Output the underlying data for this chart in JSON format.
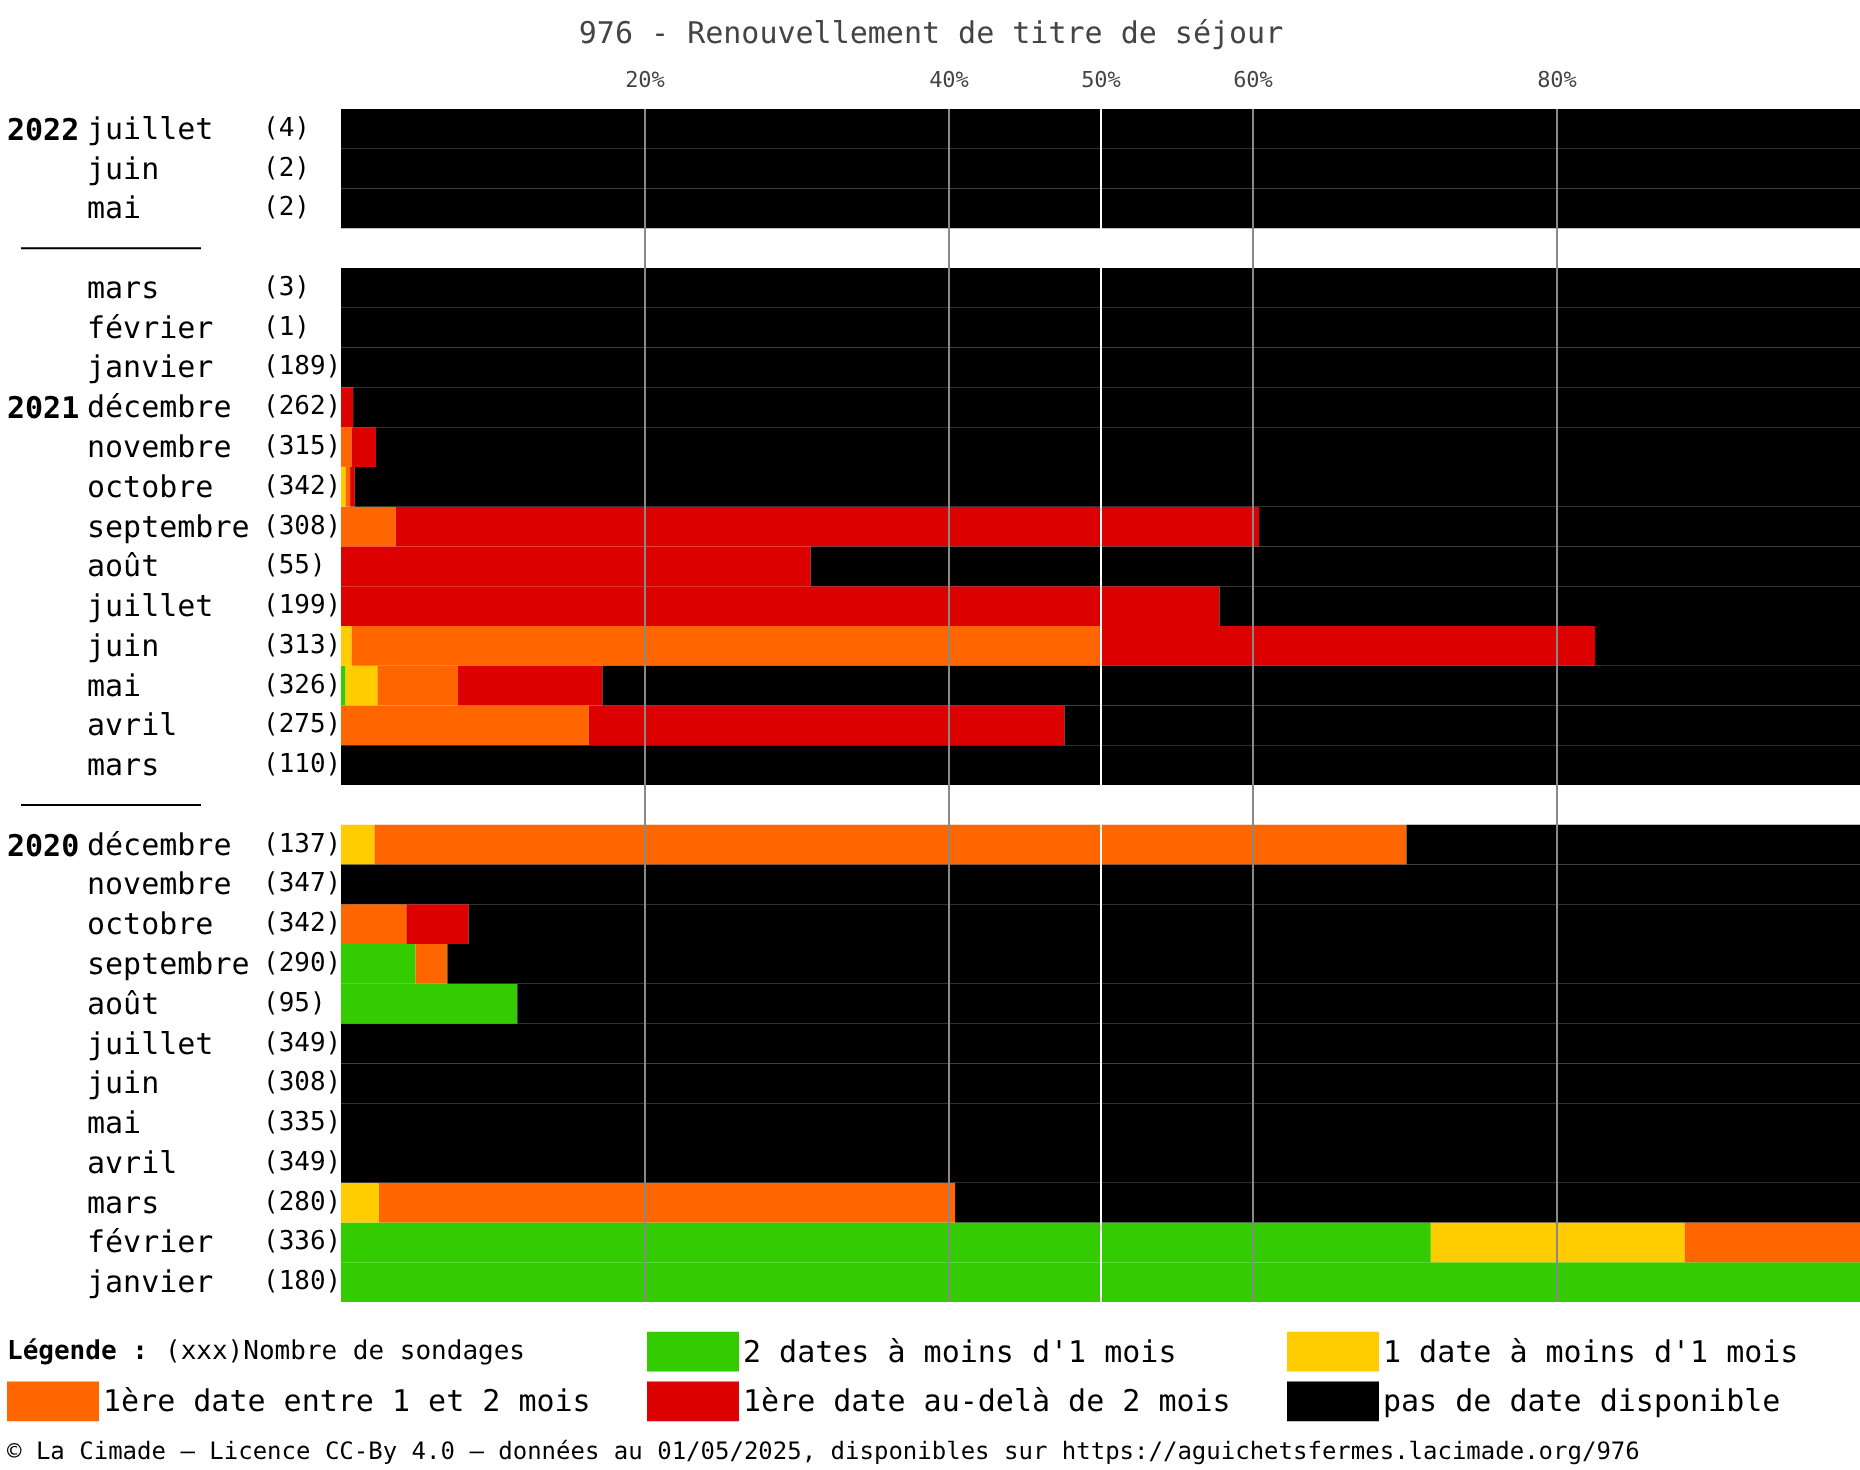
{
  "chart_data": {
    "type": "bar",
    "orientation": "horizontal",
    "stacked": true,
    "title": "976 - Renouvellement de titre de séjour",
    "categories": [
      "2022 juillet (4)",
      "juin (2)",
      "mai (2)",
      null,
      "mars (3)",
      "février (1)",
      "janvier (189)",
      "2021 décembre (262)",
      "novembre (315)",
      "octobre (342)",
      "septembre (308)",
      "août (55)",
      "juillet (199)",
      "juin (313)",
      "mai (326)",
      "avril (275)",
      "mars (110)",
      null,
      "2020 décembre (137)",
      "novembre (347)",
      "octobre (342)",
      "septembre (290)",
      "août (95)",
      "juillet (349)",
      "juin (308)",
      "mai (335)",
      "avril (349)",
      "mars (280)",
      "février (336)",
      "janvier (180)"
    ],
    "series": [
      {
        "name": "2 dates à moins d'1 mois",
        "color": "#33cc00",
        "values": [
          0,
          0,
          0,
          null,
          0,
          0,
          0,
          0,
          0,
          0,
          0,
          0,
          0,
          0,
          0.3,
          0,
          0,
          null,
          0,
          0,
          0,
          4.9,
          11.6,
          0,
          0,
          0,
          0,
          0,
          71.7,
          100
        ]
      },
      {
        "name": "1 date à moins d'1 mois",
        "color": "#ffcc00",
        "values": [
          0,
          0,
          0,
          null,
          0,
          0,
          0,
          0,
          0,
          0.3,
          0,
          0,
          0,
          0.7,
          2.1,
          0,
          0,
          null,
          2.2,
          0,
          0,
          0,
          0,
          0,
          0,
          0,
          0,
          2.5,
          16.7,
          0
        ]
      },
      {
        "name": "1ère date entre 1 et 2 mois",
        "color": "#ff6600",
        "values": [
          0,
          0,
          0,
          null,
          0,
          0,
          0,
          0,
          0.7,
          0.3,
          3.6,
          0,
          0,
          49.2,
          5.3,
          16.3,
          0,
          null,
          67.9,
          0,
          4.3,
          2.1,
          0,
          0,
          0,
          0,
          0,
          37.9,
          11.6,
          0
        ]
      },
      {
        "name": "1ère date au-delà de 2 mois",
        "color": "#dd0000",
        "values": [
          0,
          0,
          0,
          null,
          0,
          0,
          0,
          0.8,
          1.6,
          0.3,
          56.8,
          30.9,
          57.8,
          32.6,
          9.5,
          31.3,
          0,
          null,
          0,
          0,
          4.1,
          0,
          0,
          0,
          0,
          0,
          0,
          0,
          0,
          0
        ]
      },
      {
        "name": "pas de date disponible",
        "color": "#000000",
        "values": [
          100,
          100,
          100,
          null,
          100,
          100,
          100,
          99.2,
          97.7,
          99.1,
          39.6,
          69.1,
          42.2,
          17.5,
          82.8,
          52.4,
          100,
          null,
          29.9,
          100,
          91.6,
          93,
          88.4,
          100,
          100,
          100,
          100,
          59.6,
          0,
          0
        ]
      }
    ],
    "xlim": [
      0,
      100
    ],
    "xticks": [
      {
        "value": 20,
        "label": "20%"
      },
      {
        "value": 40,
        "label": "40%"
      },
      {
        "value": 50,
        "label": "50%"
      },
      {
        "value": 60,
        "label": "60%"
      },
      {
        "value": 80,
        "label": "80%"
      }
    ],
    "grid": "x",
    "ref_lines": [
      {
        "axis": "x",
        "value": 50,
        "color": "#ffffff"
      }
    ],
    "legend": "bottom",
    "legend_title": "Légende :",
    "annotations": [
      "(xxx)Nombre de sondages",
      "© La Cimade – Licence CC-By 4.0 – données au 01/05/2025, disponibles sur https://aguichetsfermes.lacimade.org/976"
    ]
  }
}
